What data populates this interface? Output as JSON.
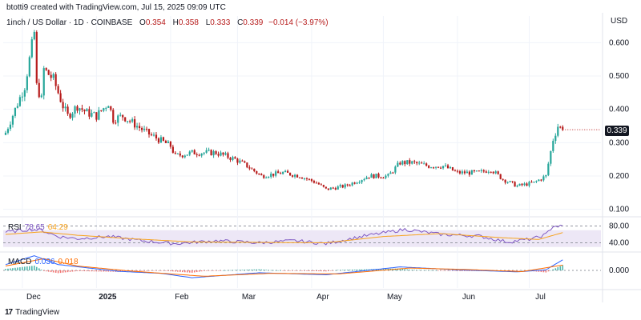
{
  "attribution": "btotti9 created with TradingView.com, Jul 15, 2025 09:09 UTC",
  "header": {
    "symbol": "1inch / US Dollar · 1D · COINBASE",
    "o_label": "O",
    "o_value": "0.354",
    "h_label": "H",
    "h_value": "0.358",
    "l_label": "L",
    "l_value": "0.333",
    "c_label": "C",
    "c_value": "0.339",
    "change": "−0.014 (−3.97%)"
  },
  "price_axis": {
    "title": "USD",
    "ticks": [
      "0.600",
      "0.500",
      "0.400",
      "0.300",
      "0.200",
      "0.100"
    ],
    "current_price": "0.339"
  },
  "rsi": {
    "name": "RSI",
    "value": "78.65",
    "ma_value": "64.29",
    "ticks": [
      "80.00",
      "40.00"
    ]
  },
  "macd": {
    "name": "MACD",
    "value": "0.036",
    "signal_value": "0.018",
    "ticks": [
      "0.000"
    ]
  },
  "time_axis": {
    "labels": [
      "Dec",
      "2025",
      "Feb",
      "Mar",
      "Apr",
      "May",
      "Jun",
      "Jul"
    ]
  },
  "footer": {
    "logo": "17",
    "brand": "TradingView"
  },
  "colors": {
    "up": "#26a69a",
    "down": "#b71c1c",
    "rsi": "#7e57c2",
    "rsi_ma": "#f7a21b",
    "rsi_band": "#ede7f6",
    "macd": "#2962ff",
    "signal": "#ff6d00",
    "hist_up": "#26a69a",
    "hist_down": "#ef5350",
    "grid": "#f0f3fa",
    "text": "#131722"
  },
  "chart_data": [
    {
      "type": "candlestick",
      "title": "1inch / US Dollar · 1D · COINBASE",
      "ylabel": "USD",
      "ylim": [
        0.08,
        0.68
      ],
      "x_ticks": [
        "Dec",
        "2025",
        "Feb",
        "Mar",
        "Apr",
        "May",
        "Jun",
        "Jul"
      ],
      "x_range": [
        "2024-11-23",
        "2025-07-31"
      ],
      "grid": true,
      "series": [
        {
          "close_points": [
            [
              "2024-11-24",
              0.33
            ],
            [
              "2024-11-28",
              0.4
            ],
            [
              "2024-12-02",
              0.47
            ],
            [
              "2024-12-04",
              0.55
            ],
            [
              "2024-12-06",
              0.63
            ],
            [
              "2024-12-07",
              0.47
            ],
            [
              "2024-12-09",
              0.43
            ],
            [
              "2024-12-10",
              0.52
            ],
            [
              "2024-12-14",
              0.49
            ],
            [
              "2024-12-18",
              0.41
            ],
            [
              "2024-12-20",
              0.38
            ],
            [
              "2024-12-24",
              0.41
            ],
            [
              "2024-12-28",
              0.39
            ],
            [
              "2025-01-01",
              0.38
            ],
            [
              "2025-01-06",
              0.42
            ],
            [
              "2025-01-08",
              0.37
            ],
            [
              "2025-01-12",
              0.38
            ],
            [
              "2025-01-18",
              0.35
            ],
            [
              "2025-01-22",
              0.33
            ],
            [
              "2025-01-27",
              0.31
            ],
            [
              "2025-02-01",
              0.29
            ],
            [
              "2025-02-03",
              0.26
            ],
            [
              "2025-02-10",
              0.27
            ],
            [
              "2025-02-20",
              0.27
            ],
            [
              "2025-02-28",
              0.25
            ],
            [
              "2025-03-05",
              0.23
            ],
            [
              "2025-03-11",
              0.2
            ],
            [
              "2025-03-20",
              0.21
            ],
            [
              "2025-03-27",
              0.2
            ],
            [
              "2025-04-03",
              0.18
            ],
            [
              "2025-04-07",
              0.16
            ],
            [
              "2025-04-15",
              0.17
            ],
            [
              "2025-04-25",
              0.2
            ],
            [
              "2025-05-03",
              0.2
            ],
            [
              "2025-05-08",
              0.24
            ],
            [
              "2025-05-13",
              0.24
            ],
            [
              "2025-05-20",
              0.23
            ],
            [
              "2025-05-26",
              0.23
            ],
            [
              "2025-06-01",
              0.21
            ],
            [
              "2025-06-10",
              0.21
            ],
            [
              "2025-06-15",
              0.22
            ],
            [
              "2025-06-20",
              0.19
            ],
            [
              "2025-06-26",
              0.17
            ],
            [
              "2025-07-03",
              0.18
            ],
            [
              "2025-07-08",
              0.2
            ],
            [
              "2025-07-11",
              0.31
            ],
            [
              "2025-07-13",
              0.35
            ],
            [
              "2025-07-15",
              0.339
            ]
          ]
        }
      ]
    },
    {
      "type": "line",
      "title": "RSI",
      "ylim": [
        20,
        100
      ],
      "y_ticks": [
        80,
        40
      ],
      "band": [
        30,
        70
      ],
      "series": [
        {
          "name": "RSI",
          "points": [
            [
              "2024-11-24",
              65
            ],
            [
              "2024-12-04",
              72
            ],
            [
              "2024-12-09",
              70
            ],
            [
              "2024-12-16",
              55
            ],
            [
              "2024-12-24",
              50
            ],
            [
              "2025-01-06",
              55
            ],
            [
              "2025-01-20",
              45
            ],
            [
              "2025-02-03",
              38
            ],
            [
              "2025-02-20",
              45
            ],
            [
              "2025-03-10",
              40
            ],
            [
              "2025-03-25",
              45
            ],
            [
              "2025-04-07",
              38
            ],
            [
              "2025-04-22",
              55
            ],
            [
              "2025-05-10",
              72
            ],
            [
              "2025-05-25",
              60
            ],
            [
              "2025-06-10",
              56
            ],
            [
              "2025-06-22",
              42
            ],
            [
              "2025-07-03",
              50
            ],
            [
              "2025-07-08",
              60
            ],
            [
              "2025-07-11",
              80
            ],
            [
              "2025-07-15",
              78.65
            ]
          ]
        },
        {
          "name": "RSI MA",
          "points": [
            [
              "2024-11-24",
              60
            ],
            [
              "2024-12-09",
              66
            ],
            [
              "2024-12-24",
              58
            ],
            [
              "2025-01-15",
              50
            ],
            [
              "2025-02-10",
              42
            ],
            [
              "2025-03-10",
              41
            ],
            [
              "2025-04-07",
              40
            ],
            [
              "2025-05-01",
              55
            ],
            [
              "2025-05-25",
              62
            ],
            [
              "2025-06-20",
              52
            ],
            [
              "2025-07-05",
              48
            ],
            [
              "2025-07-15",
              64.29
            ]
          ]
        }
      ]
    },
    {
      "type": "line",
      "title": "MACD",
      "ylim": [
        -0.06,
        0.06
      ],
      "y_ticks": [
        0.0
      ],
      "series": [
        {
          "name": "MACD",
          "points": [
            [
              "2024-11-24",
              0.02
            ],
            [
              "2024-12-06",
              0.05
            ],
            [
              "2024-12-16",
              0.02
            ],
            [
              "2025-01-10",
              -0.003
            ],
            [
              "2025-01-28",
              -0.01
            ],
            [
              "2025-02-10",
              -0.025
            ],
            [
              "2025-03-10",
              -0.008
            ],
            [
              "2025-04-07",
              -0.015
            ],
            [
              "2025-05-08",
              0.012
            ],
            [
              "2025-06-01",
              0.002
            ],
            [
              "2025-06-26",
              -0.005
            ],
            [
              "2025-07-08",
              0.002
            ],
            [
              "2025-07-15",
              0.036
            ]
          ]
        },
        {
          "name": "Signal",
          "points": [
            [
              "2024-11-24",
              0.015
            ],
            [
              "2024-12-10",
              0.04
            ],
            [
              "2024-12-24",
              0.015
            ],
            [
              "2025-01-15",
              -0.002
            ],
            [
              "2025-02-15",
              -0.02
            ],
            [
              "2025-03-15",
              -0.01
            ],
            [
              "2025-04-12",
              -0.012
            ],
            [
              "2025-05-12",
              0.008
            ],
            [
              "2025-06-05",
              0.003
            ],
            [
              "2025-06-28",
              -0.004
            ],
            [
              "2025-07-15",
              0.018
            ]
          ]
        }
      ]
    }
  ]
}
